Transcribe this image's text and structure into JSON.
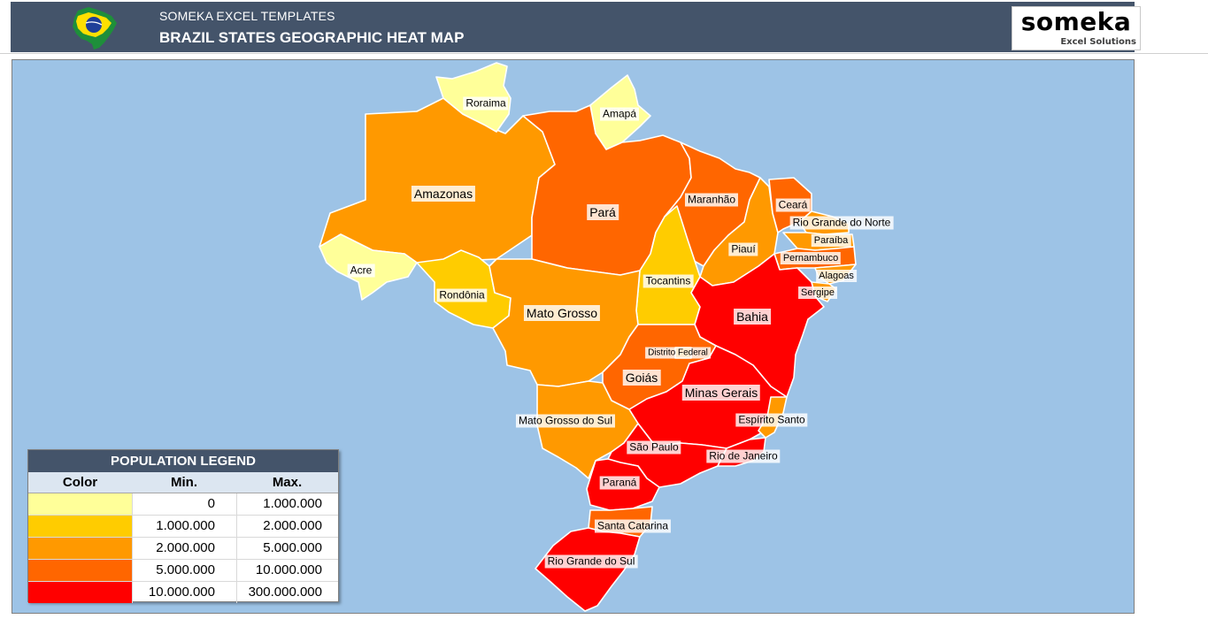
{
  "header": {
    "subtitle": "SOMEKA EXCEL TEMPLATES",
    "title": "BRAZIL STATES GEOGRAPHIC HEAT MAP",
    "logo_main": "someka",
    "logo_sub": "Excel Solutions"
  },
  "colors": {
    "header_bg": "#44546a",
    "ocean": "#9dc3e6",
    "tier1": "#ffff99",
    "tier2": "#ffcc00",
    "tier3": "#ff9900",
    "tier4": "#ff6600",
    "tier5": "#ff0000"
  },
  "map": {
    "states": [
      {
        "name": "Roraima",
        "tier": 1
      },
      {
        "name": "Amapá",
        "tier": 1
      },
      {
        "name": "Amazonas",
        "tier": 3
      },
      {
        "name": "Pará",
        "tier": 4
      },
      {
        "name": "Maranhão",
        "tier": 4
      },
      {
        "name": "Ceará",
        "tier": 4
      },
      {
        "name": "Rio Grande do Norte",
        "tier": 3
      },
      {
        "name": "Paraíba",
        "tier": 3
      },
      {
        "name": "Piauí",
        "tier": 3
      },
      {
        "name": "Pernambuco",
        "tier": 4
      },
      {
        "name": "Alagoas",
        "tier": 3
      },
      {
        "name": "Sergipe",
        "tier": 3
      },
      {
        "name": "Acre",
        "tier": 1
      },
      {
        "name": "Rondônia",
        "tier": 2
      },
      {
        "name": "Tocantins",
        "tier": 2
      },
      {
        "name": "Bahia",
        "tier": 5
      },
      {
        "name": "Mato Grosso",
        "tier": 3
      },
      {
        "name": "Distrito Federal",
        "tier": 3
      },
      {
        "name": "Goiás",
        "tier": 4
      },
      {
        "name": "Minas Gerais",
        "tier": 5
      },
      {
        "name": "Espírito Santo",
        "tier": 3
      },
      {
        "name": "Mato Grosso do Sul",
        "tier": 3
      },
      {
        "name": "São Paulo",
        "tier": 5
      },
      {
        "name": "Rio de Janeiro",
        "tier": 5
      },
      {
        "name": "Paraná",
        "tier": 5
      },
      {
        "name": "Santa Catarina",
        "tier": 4
      },
      {
        "name": "Rio Grande do Sul",
        "tier": 5
      }
    ]
  },
  "legend": {
    "title": "POPULATION LEGEND",
    "col_color": "Color",
    "col_min": "Min.",
    "col_max": "Max.",
    "rows": [
      {
        "color": "#ffff99",
        "min": "0",
        "max": "1.000.000"
      },
      {
        "color": "#ffcc00",
        "min": "1.000.000",
        "max": "2.000.000"
      },
      {
        "color": "#ff9900",
        "min": "2.000.000",
        "max": "5.000.000"
      },
      {
        "color": "#ff6600",
        "min": "5.000.000",
        "max": "10.000.000"
      },
      {
        "color": "#ff0000",
        "min": "10.000.000",
        "max": "300.000.000"
      }
    ]
  }
}
